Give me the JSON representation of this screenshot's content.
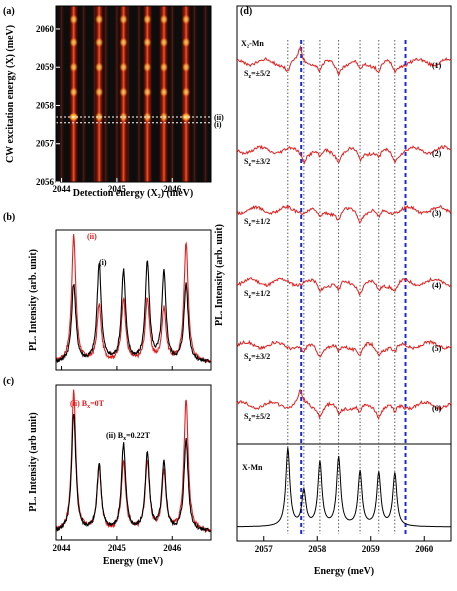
{
  "chart_data": [
    {
      "panel": "(a)",
      "type": "heatmap",
      "xlabel": "Detection energy (X₂)  (meV)",
      "ylabel": "CW excitation energy (X) (meV)",
      "x_ticks": [
        "2044",
        "2045",
        "2046"
      ],
      "y_ticks": [
        "2056",
        "2057",
        "2058",
        "2059",
        "2060"
      ],
      "xlim": [
        2043.9,
        2046.7
      ],
      "ylim": [
        2056.0,
        2060.6
      ],
      "annotations": [
        {
          "label": "(ii)",
          "y": 2057.7
        },
        {
          "label": "(i)",
          "y": 2057.55
        }
      ],
      "bright_columns_x": [
        2044.22,
        2044.68,
        2045.12,
        2045.55,
        2045.85,
        2046.25
      ],
      "bright_spot_y": [
        2057.7,
        2058.35,
        2059.0,
        2059.65,
        2060.25
      ],
      "colors": {
        "background": "#0d0d0d",
        "hot": "#ffe060",
        "mid": "#e03010",
        "low": "#501008"
      }
    },
    {
      "panel": "(b)",
      "type": "line",
      "ylabel": "PL. Intensity (arb. unit)",
      "xlim": [
        2043.9,
        2046.7
      ],
      "x_ticks": [
        "2044",
        "2045",
        "2046"
      ],
      "series": [
        {
          "name": "(ii)",
          "color": "#e02020",
          "peaks": [
            [
              2044.22,
              1.0
            ],
            [
              2044.68,
              0.45
            ],
            [
              2045.12,
              0.5
            ],
            [
              2045.55,
              0.5
            ],
            [
              2045.85,
              0.42
            ],
            [
              2046.25,
              0.95
            ]
          ]
        },
        {
          "name": "(i)",
          "color": "#000000",
          "peaks": [
            [
              2044.22,
              0.62
            ],
            [
              2044.68,
              0.78
            ],
            [
              2045.12,
              0.72
            ],
            [
              2045.55,
              0.78
            ],
            [
              2045.85,
              0.7
            ],
            [
              2046.25,
              0.62
            ]
          ]
        }
      ]
    },
    {
      "panel": "(c)",
      "type": "line",
      "xlabel": "Energy (meV)",
      "ylabel": "PL. Intensity (arb unit)",
      "xlim": [
        2043.9,
        2046.7
      ],
      "x_ticks": [
        "2044",
        "2045",
        "2046"
      ],
      "series": [
        {
          "name": "(ii) Bx=0T",
          "color": "#e02020",
          "peaks": [
            [
              2044.22,
              1.0
            ],
            [
              2044.68,
              0.45
            ],
            [
              2045.12,
              0.5
            ],
            [
              2045.55,
              0.5
            ],
            [
              2045.85,
              0.42
            ],
            [
              2046.25,
              0.95
            ]
          ]
        },
        {
          "name": "(ii) Bx=0.22T",
          "color": "#000000",
          "peaks": [
            [
              2044.22,
              0.85
            ],
            [
              2044.68,
              0.48
            ],
            [
              2045.12,
              0.62
            ],
            [
              2045.55,
              0.55
            ],
            [
              2045.85,
              0.48
            ],
            [
              2046.25,
              0.66
            ]
          ]
        }
      ]
    },
    {
      "panel": "(d)",
      "type": "line",
      "xlabel": "Energy (meV)",
      "ylabel": "PL. Intensity (arb. unit)",
      "xlim": [
        2056.5,
        2060.5
      ],
      "x_ticks": [
        "2057",
        "2058",
        "2059",
        "2060"
      ],
      "title": "X₂-Mn",
      "bottom_label": "X-Mn",
      "dotted_lines_x": [
        2057.45,
        2057.75,
        2058.05,
        2058.4,
        2058.8,
        2059.15,
        2059.45
      ],
      "dashed_blue_x": [
        2057.7,
        2059.65
      ],
      "traces": [
        {
          "label": "S₂=±5/2",
          "index": "(1)",
          "dips": [
            2057.45,
            2058.05,
            2058.4,
            2058.8,
            2059.15,
            2059.45
          ],
          "peak": 2057.68
        },
        {
          "label": "S₂=±3/2",
          "index": "(2)",
          "dips": [
            2057.75,
            2058.05,
            2058.4,
            2058.8,
            2059.15,
            2059.45
          ]
        },
        {
          "label": "S₂=±1/2",
          "index": "(3)",
          "dips": [
            2058.05,
            2058.4,
            2058.8,
            2059.15
          ]
        },
        {
          "label": "S₂=±1/2",
          "index": "(4)",
          "dips": [
            2058.05,
            2058.4,
            2058.8,
            2059.15,
            2059.45
          ]
        },
        {
          "label": "S₂=±3/2",
          "index": "(5)",
          "dips": [
            2057.75,
            2058.05,
            2058.4,
            2058.8,
            2059.15,
            2059.45
          ]
        },
        {
          "label": "S₂=±5/2",
          "index": "(6)",
          "dips": [
            2058.05,
            2058.4,
            2058.8,
            2059.15,
            2059.45
          ],
          "peak": 2057.68
        }
      ],
      "xmn_peaks": [
        [
          2057.45,
          1.0
        ],
        [
          2057.75,
          0.45
        ],
        [
          2058.05,
          0.82
        ],
        [
          2058.4,
          0.88
        ],
        [
          2058.8,
          0.7
        ],
        [
          2059.15,
          0.68
        ],
        [
          2059.45,
          0.68
        ]
      ]
    }
  ],
  "labels": {
    "a": "(a)",
    "b": "(b)",
    "c": "(c)",
    "d": "(d)",
    "ann_ii": "(ii)",
    "ann_i": "(i)",
    "b_ii": "(ii)",
    "b_i": "(i)",
    "c_ii": "(ii) B",
    "c_ii_sub": "x",
    "c_ii_val": "=0T",
    "c_i": "(ii) B",
    "c_i_sub": "x",
    "c_i_val": "=0.22T"
  }
}
